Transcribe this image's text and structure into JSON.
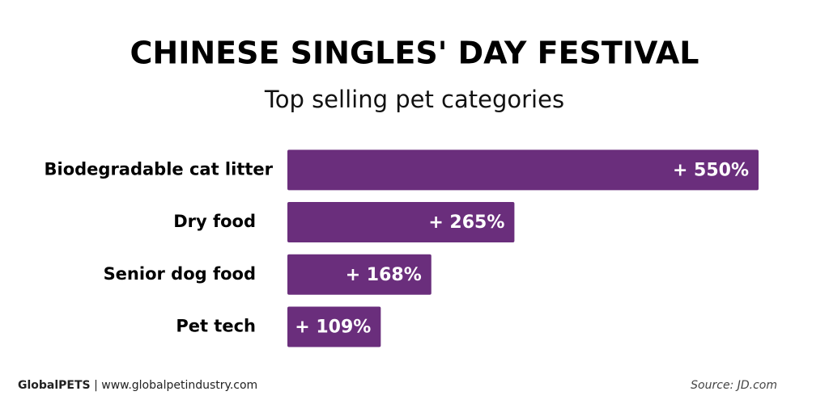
{
  "chart_data": {
    "type": "bar",
    "orientation": "horizontal",
    "title": "CHINESE SINGLES' DAY FESTIVAL",
    "subtitle": "Top selling pet categories",
    "categories": [
      "Biodegradable cat litter",
      "Dry food",
      "Senior dog food",
      "Pet tech"
    ],
    "values": [
      550,
      265,
      168,
      109
    ],
    "value_labels": [
      "+ 550%",
      "+ 265%",
      "+ 168%",
      "+ 109%"
    ],
    "color": "#6a2e7c",
    "xlim": [
      0,
      550
    ]
  },
  "footer": {
    "brand": "GlobalPETS",
    "separator": "|",
    "website": "www.globalpetindustry.com",
    "source": "Source: JD.com"
  }
}
